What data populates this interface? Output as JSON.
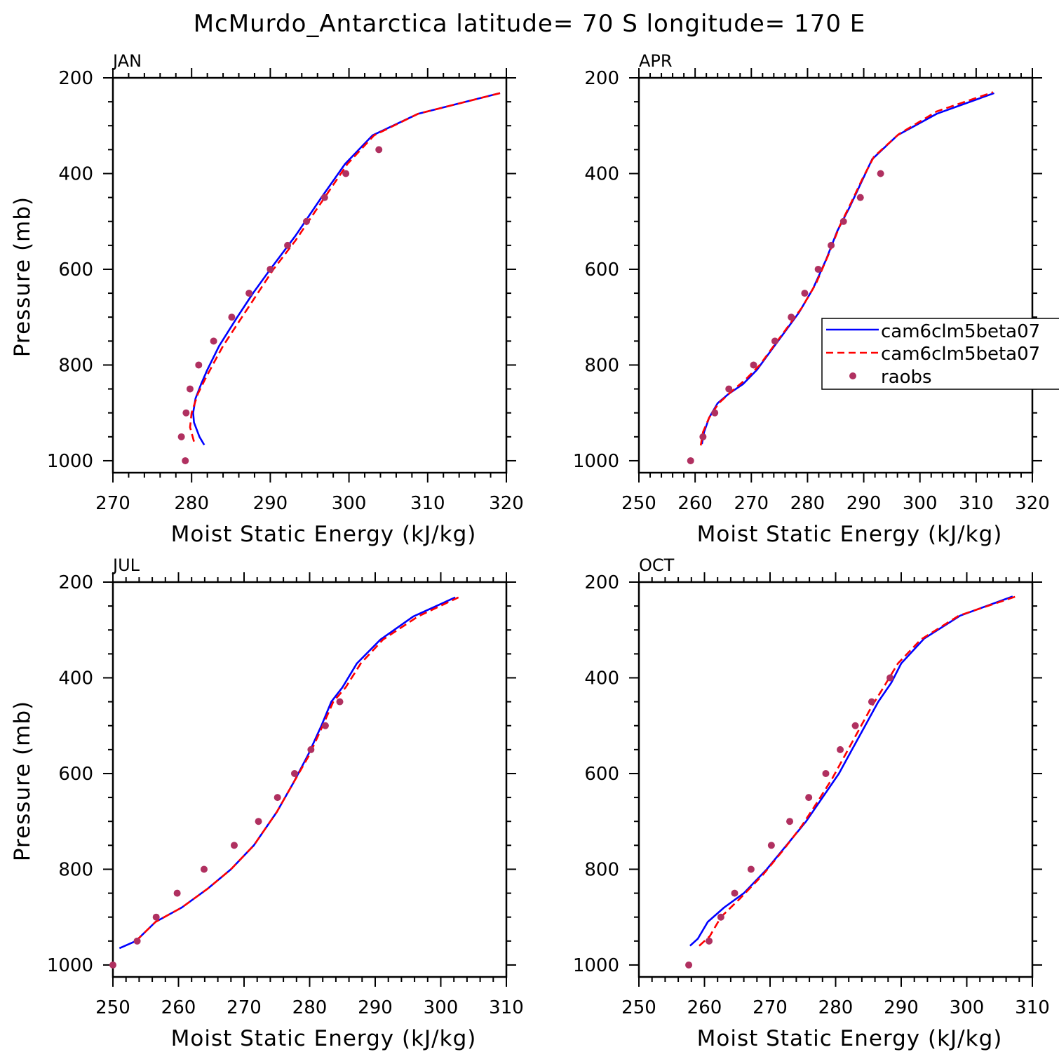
{
  "title": "McMurdo_Antarctica  latitude= 70 S longitude= 170 E",
  "colors": {
    "cam6_solid": "#0000ff",
    "cam6_dashed": "#ff0000",
    "raobs": "#b03060"
  },
  "legend": {
    "entries": [
      {
        "label": "cam6clm5beta07",
        "style": "solid-line",
        "color": "#0000ff"
      },
      {
        "label": "cam6clm5beta07",
        "style": "dashed-line",
        "color": "#ff0000"
      },
      {
        "label": "raobs",
        "style": "marker",
        "color": "#b03060"
      }
    ]
  },
  "chart_data": [
    {
      "type": "line",
      "panel": "JAN",
      "xlabel": "Moist Static Energy (kJ/kg)",
      "ylabel": "Pressure (mb)",
      "xlim": [
        270,
        320
      ],
      "ylim": [
        1025,
        200
      ],
      "xticks": [
        270,
        280,
        290,
        300,
        310,
        320
      ],
      "yticks": [
        200,
        400,
        600,
        800,
        1000
      ],
      "series": [
        {
          "name": "cam6clm5beta07",
          "style": "solid",
          "x": [
            281.6,
            281.0,
            280.3,
            280.2,
            280.5,
            281.2,
            282.0,
            283.5,
            285.8,
            287.8,
            290.0,
            293.2,
            296.5,
            299.5,
            303.0,
            308.8,
            319.2
          ],
          "y": [
            967,
            950,
            920,
            900,
            870,
            840,
            810,
            760,
            700,
            650,
            600,
            530,
            450,
            380,
            320,
            275,
            232
          ]
        },
        {
          "name": "cam6clm5beta07",
          "style": "dashed",
          "x": [
            280.3,
            279.8,
            280.0,
            280.8,
            281.7,
            283.0,
            284.0,
            286.0,
            288.0,
            290.4,
            293.2,
            296.5,
            299.8,
            303.2,
            308.8,
            319.2
          ],
          "y": [
            960,
            930,
            900,
            860,
            830,
            790,
            760,
            710,
            660,
            600,
            540,
            460,
            380,
            320,
            275,
            232
          ]
        }
      ],
      "points": {
        "name": "raobs",
        "x": [
          279.2,
          278.7,
          279.3,
          279.8,
          280.9,
          282.8,
          285.1,
          287.3,
          290.0,
          292.2,
          294.6,
          296.9,
          299.6,
          303.8
        ],
        "y": [
          1000,
          950,
          900,
          850,
          800,
          750,
          700,
          650,
          600,
          550,
          500,
          450,
          400,
          350
        ]
      }
    },
    {
      "type": "line",
      "panel": "APR",
      "xlabel": "Moist Static Energy (kJ/kg)",
      "ylabel": "",
      "xlim": [
        250,
        320
      ],
      "ylim": [
        1025,
        200
      ],
      "xticks": [
        250,
        260,
        270,
        280,
        290,
        300,
        310,
        320
      ],
      "yticks": [
        200,
        400,
        600,
        800,
        1000
      ],
      "series": [
        {
          "name": "cam6clm5beta07",
          "style": "solid",
          "x": [
            261.2,
            261.6,
            262.5,
            264.0,
            266.0,
            268.5,
            271.0,
            273.5,
            276.0,
            278.5,
            281.0,
            283.3,
            285.3,
            287.5,
            289.5,
            291.5,
            296.0,
            303.0,
            313.2
          ],
          "y": [
            965,
            940,
            910,
            880,
            860,
            840,
            810,
            770,
            730,
            690,
            640,
            580,
            520,
            470,
            420,
            370,
            320,
            275,
            232
          ]
        },
        {
          "name": "cam6clm5beta07",
          "style": "dashed",
          "x": [
            261.0,
            261.4,
            262.5,
            264.2,
            266.5,
            269.0,
            271.5,
            274.0,
            276.5,
            279.0,
            281.5,
            283.7,
            285.7,
            287.8,
            289.8,
            291.8,
            296.2,
            303.0,
            313.0
          ],
          "y": [
            968,
            940,
            910,
            880,
            855,
            830,
            800,
            760,
            720,
            680,
            630,
            570,
            510,
            460,
            410,
            365,
            318,
            270,
            230
          ]
        }
      ],
      "points": {
        "name": "raobs",
        "x": [
          259.2,
          261.4,
          263.5,
          266.0,
          270.4,
          274.2,
          277.1,
          279.5,
          281.9,
          284.2,
          286.4,
          289.4,
          293.0
        ],
        "y": [
          1000,
          950,
          900,
          850,
          800,
          750,
          700,
          650,
          600,
          550,
          500,
          450,
          400
        ]
      }
    },
    {
      "type": "line",
      "panel": "JUL",
      "xlabel": "Moist Static Energy (kJ/kg)",
      "ylabel": "Pressure (mb)",
      "xlim": [
        250,
        310
      ],
      "ylim": [
        1025,
        200
      ],
      "xticks": [
        250,
        260,
        270,
        280,
        290,
        300,
        310
      ],
      "yticks": [
        200,
        400,
        600,
        800,
        1000
      ],
      "series": [
        {
          "name": "cam6clm5beta07",
          "style": "solid",
          "x": [
            251.0,
            253.5,
            256.5,
            260.5,
            264.5,
            268.0,
            271.5,
            275.0,
            277.5,
            279.8,
            281.8,
            283.3,
            285.0,
            287.2,
            290.8,
            295.8,
            302.2
          ],
          "y": [
            965,
            950,
            910,
            880,
            840,
            800,
            750,
            680,
            620,
            560,
            500,
            450,
            420,
            370,
            320,
            272,
            232
          ]
        },
        {
          "name": "cam6clm5beta07",
          "style": "dashed",
          "x": [
            253.5,
            256.5,
            260.5,
            264.5,
            268.0,
            271.5,
            275.0,
            277.5,
            280.0,
            282.0,
            283.6,
            285.5,
            287.8,
            291.2,
            296.5,
            302.7
          ],
          "y": [
            950,
            910,
            880,
            840,
            800,
            750,
            680,
            620,
            560,
            500,
            450,
            420,
            370,
            320,
            272,
            232
          ]
        }
      ],
      "points": {
        "name": "raobs",
        "x": [
          250.0,
          253.7,
          256.6,
          259.8,
          263.9,
          268.5,
          272.2,
          275.1,
          277.7,
          280.2,
          282.4,
          284.6
        ],
        "y": [
          1000,
          950,
          900,
          850,
          800,
          750,
          700,
          650,
          600,
          550,
          500,
          450
        ]
      }
    },
    {
      "type": "line",
      "panel": "OCT",
      "xlabel": "Moist Static Energy (kJ/kg)",
      "ylabel": "",
      "xlim": [
        250,
        310
      ],
      "ylim": [
        1025,
        200
      ],
      "xticks": [
        250,
        260,
        270,
        280,
        290,
        300,
        310
      ],
      "yticks": [
        200,
        400,
        600,
        800,
        1000
      ],
      "series": [
        {
          "name": "cam6clm5beta07",
          "style": "solid",
          "x": [
            257.8,
            259.0,
            260.5,
            263.0,
            266.0,
            269.5,
            272.5,
            275.5,
            278.0,
            280.5,
            282.5,
            284.5,
            286.5,
            288.5,
            290.0,
            293.5,
            299.0,
            307.0
          ],
          "y": [
            960,
            945,
            910,
            880,
            850,
            800,
            750,
            700,
            650,
            600,
            550,
            500,
            450,
            410,
            370,
            318,
            270,
            230
          ]
        },
        {
          "name": "cam6clm5beta07",
          "style": "dashed",
          "x": [
            259.2,
            260.8,
            262.5,
            265.5,
            269.0,
            272.0,
            274.8,
            277.2,
            279.5,
            281.5,
            283.5,
            285.5,
            287.3,
            289.5,
            293.0,
            298.8,
            307.5
          ],
          "y": [
            960,
            940,
            900,
            860,
            810,
            760,
            710,
            660,
            610,
            560,
            510,
            460,
            420,
            370,
            320,
            270,
            230
          ]
        }
      ],
      "points": {
        "name": "raobs",
        "x": [
          257.6,
          260.7,
          262.5,
          264.6,
          267.1,
          270.2,
          273.0,
          275.9,
          278.5,
          280.7,
          283.0,
          285.5,
          288.3
        ],
        "y": [
          1000,
          950,
          900,
          850,
          800,
          750,
          700,
          650,
          600,
          550,
          500,
          450,
          400
        ]
      }
    }
  ]
}
